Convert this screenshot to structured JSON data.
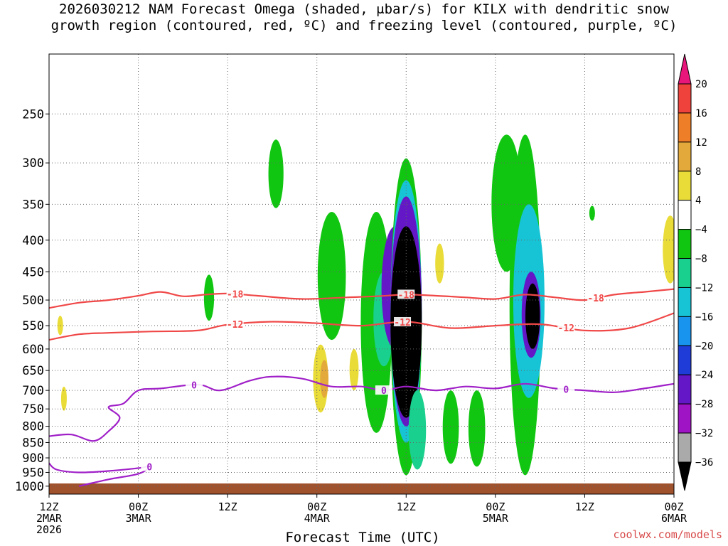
{
  "chart_data": {
    "type": "heatmap",
    "title_lines": [
      "2026030212 NAM Forecast Omega (shaded, μbar/s) for KILX with dendritic snow",
      "growth region (contoured, red, ºC) and freezing level (contoured, purple, ºC)"
    ],
    "xlabel": "Forecast Time (UTC)",
    "credit": "coolwx.com/models",
    "x_ticks": [
      {
        "t": 0,
        "l1": "12Z",
        "l2": "2MAR",
        "l3": "2026"
      },
      {
        "t": 12,
        "l1": "00Z",
        "l2": "3MAR"
      },
      {
        "t": 24,
        "l1": "12Z"
      },
      {
        "t": 36,
        "l1": "00Z",
        "l2": "4MAR"
      },
      {
        "t": 48,
        "l1": "12Z"
      },
      {
        "t": 60,
        "l1": "00Z",
        "l2": "5MAR"
      },
      {
        "t": 72,
        "l1": "12Z"
      },
      {
        "t": 84,
        "l1": "00Z",
        "l2": "6MAR"
      }
    ],
    "xlim": [
      0,
      84
    ],
    "y_ticks": [
      250,
      300,
      350,
      400,
      450,
      500,
      550,
      600,
      650,
      700,
      750,
      800,
      850,
      900,
      950,
      1000
    ],
    "ylim": [
      1030,
      200
    ],
    "y_scale": "log-pressure",
    "grid": true,
    "colorbar": {
      "labels": [
        "20",
        "16",
        "12",
        "8",
        "4",
        "−4",
        "−8",
        "−12",
        "−16",
        "−20",
        "−24",
        "−28",
        "−32",
        "−36"
      ],
      "colors": [
        "#e8157a",
        "#f0423c",
        "#ee7e27",
        "#e3a93a",
        "#e9dc38",
        "#ffffff",
        "#11c611",
        "#1ad08e",
        "#16c4d6",
        "#1894ee",
        "#1f3cd8",
        "#6317c6",
        "#9f14c4",
        "#aaaaaa",
        "#000000"
      ]
    },
    "omega_blobs": [
      {
        "t": 30.5,
        "p0": 275,
        "p1": 355,
        "color": "#11c611"
      },
      {
        "t": 21.5,
        "p0": 455,
        "p1": 540,
        "color": "#11c611"
      },
      {
        "t": 1.5,
        "p0": 530,
        "p1": 570,
        "color": "#e9dc38"
      },
      {
        "t": 2.0,
        "p0": 690,
        "p1": 755,
        "color": "#e9dc38"
      },
      {
        "t": 36.5,
        "p0": 590,
        "p1": 760,
        "color": "#e9dc38"
      },
      {
        "t": 41.0,
        "p0": 600,
        "p1": 700,
        "color": "#e9dc38"
      },
      {
        "t": 37.0,
        "p0": 625,
        "p1": 720,
        "color": "#e3a93a"
      },
      {
        "t": 38.0,
        "p0": 360,
        "p1": 580,
        "color": "#11c611"
      },
      {
        "t": 44.0,
        "p0": 360,
        "p1": 820,
        "color": "#11c611"
      },
      {
        "t": 45.0,
        "p0": 450,
        "p1": 640,
        "color": "#1ad08e"
      },
      {
        "t": 46.5,
        "p0": 380,
        "p1": 600,
        "color": "#6317c6"
      },
      {
        "t": 48.0,
        "p0": 295,
        "p1": 960,
        "color": "#11c611"
      },
      {
        "t": 48.0,
        "p0": 320,
        "p1": 850,
        "color": "#16c4d6"
      },
      {
        "t": 48.0,
        "p0": 340,
        "p1": 800,
        "color": "#6317c6"
      },
      {
        "t": 48.0,
        "p0": 380,
        "p1": 775,
        "color": "#000000"
      },
      {
        "t": 49.5,
        "p0": 700,
        "p1": 940,
        "color": "#1ad08e"
      },
      {
        "t": 54.0,
        "p0": 700,
        "p1": 920,
        "color": "#11c611"
      },
      {
        "t": 57.5,
        "p0": 700,
        "p1": 930,
        "color": "#11c611"
      },
      {
        "t": 61.5,
        "p0": 270,
        "p1": 450,
        "color": "#11c611"
      },
      {
        "t": 64.0,
        "p0": 270,
        "p1": 960,
        "color": "#11c611"
      },
      {
        "t": 64.5,
        "p0": 350,
        "p1": 720,
        "color": "#16c4d6"
      },
      {
        "t": 64.8,
        "p0": 450,
        "p1": 620,
        "color": "#6317c6"
      },
      {
        "t": 65.0,
        "p0": 470,
        "p1": 600,
        "color": "#000000"
      },
      {
        "t": 73.0,
        "p0": 352,
        "p1": 372,
        "color": "#11c611"
      },
      {
        "t": 83.5,
        "p0": 365,
        "p1": 470,
        "color": "#e9dc38"
      },
      {
        "t": 52.5,
        "p0": 405,
        "p1": 470,
        "color": "#e9dc38"
      }
    ],
    "ground": {
      "p_top": 990,
      "color": "#a0522d"
    },
    "series": [
      {
        "name": "-18",
        "color": "#f04848",
        "x": [
          0,
          4,
          8,
          12,
          15,
          18,
          21,
          24,
          28,
          34,
          40,
          44,
          48,
          52,
          56,
          60,
          64,
          68,
          72,
          76,
          80,
          84
        ],
        "y": [
          515,
          505,
          500,
          492,
          485,
          493,
          490,
          488,
          492,
          498,
          495,
          493,
          490,
          492,
          495,
          498,
          490,
          495,
          500,
          490,
          485,
          480
        ],
        "labels": [
          {
            "t": 25,
            "text": "-18"
          },
          {
            "t": 48,
            "text": "-18"
          },
          {
            "t": 73.5,
            "text": "-18"
          }
        ]
      },
      {
        "name": "-12",
        "color": "#f04848",
        "x": [
          0,
          4,
          8,
          14,
          20,
          24,
          30,
          36,
          42,
          48,
          54,
          60,
          66,
          72,
          78,
          84
        ],
        "y": [
          580,
          568,
          565,
          562,
          560,
          548,
          542,
          545,
          550,
          542,
          555,
          550,
          547,
          560,
          555,
          525
        ],
        "labels": [
          {
            "t": 25,
            "text": "-12"
          },
          {
            "t": 47.5,
            "text": "-12"
          },
          {
            "t": 69.5,
            "text": "-12"
          }
        ]
      },
      {
        "name": "0",
        "color": "#a020c8",
        "x": [
          0,
          3,
          6,
          8,
          9.5,
          8,
          10,
          12,
          15,
          20,
          23,
          27,
          30,
          34,
          38,
          42,
          45,
          48,
          52,
          56,
          60,
          64,
          68,
          72,
          76,
          80,
          84
        ],
        "y": [
          830,
          825,
          845,
          815,
          775,
          745,
          735,
          700,
          695,
          685,
          700,
          675,
          665,
          670,
          690,
          690,
          700,
          690,
          700,
          690,
          695,
          683,
          695,
          700,
          705,
          695,
          683
        ],
        "labels": [
          {
            "t": 19.5,
            "text": "0"
          },
          {
            "t": 45,
            "text": "0"
          },
          {
            "t": 69.5,
            "text": "0"
          }
        ]
      },
      {
        "name": "0-low",
        "color": "#a020c8",
        "x": [
          0,
          1,
          4,
          8,
          12,
          13.5,
          12,
          8,
          4
        ],
        "y": [
          918,
          940,
          950,
          945,
          935,
          930,
          955,
          975,
          1000
        ],
        "labels": [
          {
            "t": 13.5,
            "text": "0"
          }
        ]
      }
    ]
  }
}
